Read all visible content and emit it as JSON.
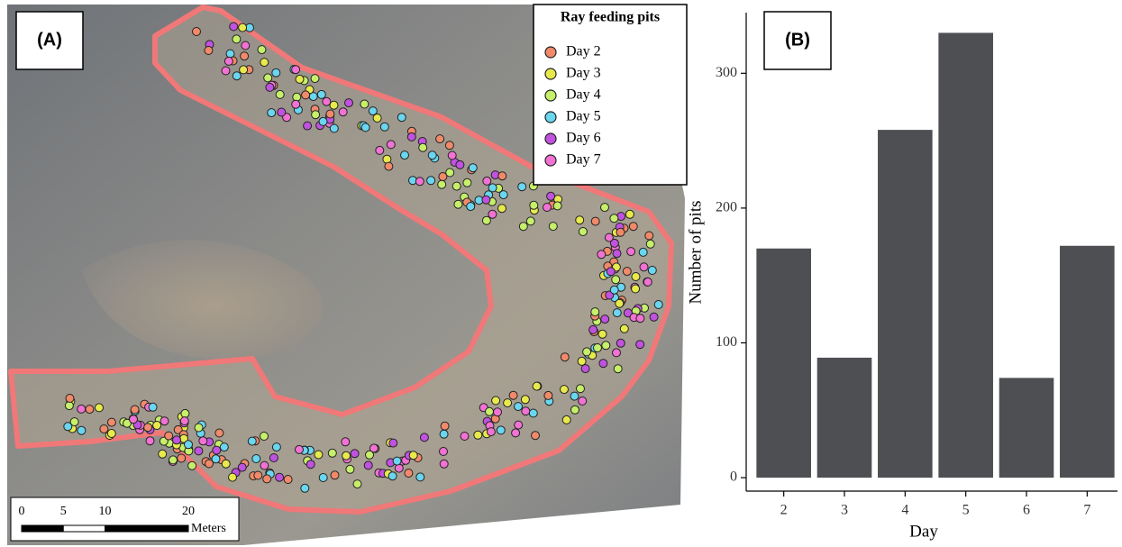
{
  "panel_a": {
    "label": "(A)",
    "legend": {
      "title": "Ray feeding pits",
      "entries": [
        {
          "name": "Day 2",
          "color": "#f08a6a"
        },
        {
          "name": "Day 3",
          "color": "#e8ea4c"
        },
        {
          "name": "Day 4",
          "color": "#c6ef6a"
        },
        {
          "name": "Day 5",
          "color": "#6ad6ef"
        },
        {
          "name": "Day 6",
          "color": "#c152e0"
        },
        {
          "name": "Day 7",
          "color": "#f272d4"
        }
      ]
    },
    "scale_bar": {
      "ticks": [
        0,
        5,
        10,
        20
      ],
      "unit": "Meters"
    }
  },
  "chart_data": {
    "type": "bar",
    "label": "(B)",
    "categories": [
      "2",
      "3",
      "4",
      "5",
      "6",
      "7"
    ],
    "values": [
      170,
      89,
      258,
      330,
      74,
      172
    ],
    "color": "#4d4f53",
    "xlabel": "Day",
    "ylabel": "Number of pits",
    "ylim": [
      -10,
      345
    ],
    "yticks": [
      0,
      100,
      200,
      300
    ]
  }
}
